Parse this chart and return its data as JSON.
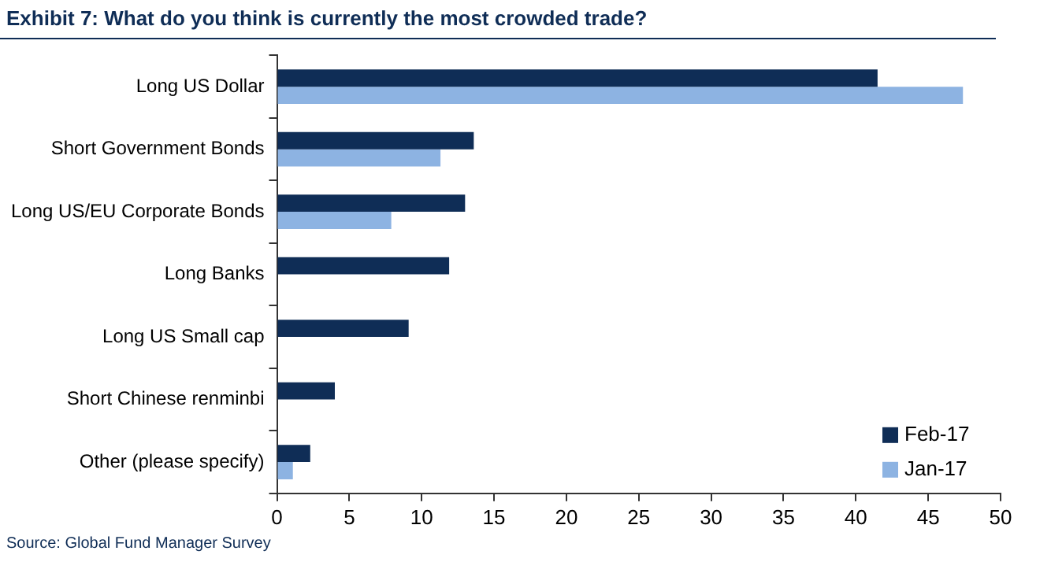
{
  "chart_data": {
    "type": "bar",
    "orientation": "horizontal",
    "title": "Exhibit 7: What do you think is currently the most crowded trade?",
    "categories": [
      "Long US Dollar",
      "Short Government Bonds",
      "Long US/EU Corporate Bonds",
      "Long Banks",
      "Long US Small cap",
      "Short Chinese renminbi",
      "Other (please specify)"
    ],
    "series": [
      {
        "name": "Feb-17",
        "color": "#0f2d56",
        "values": [
          41.5,
          13.6,
          13.0,
          11.9,
          9.1,
          4.0,
          2.3
        ]
      },
      {
        "name": "Jan-17",
        "color": "#8db3e2",
        "values": [
          47.4,
          11.3,
          7.9,
          null,
          null,
          null,
          1.1
        ]
      }
    ],
    "xlim": [
      0,
      50
    ],
    "xticks": [
      0,
      5,
      10,
      15,
      20,
      25,
      30,
      35,
      40,
      45,
      50
    ],
    "grid": false,
    "legend": "bottom right",
    "annotations": [
      "Source: Global Fund Manager Survey"
    ]
  }
}
